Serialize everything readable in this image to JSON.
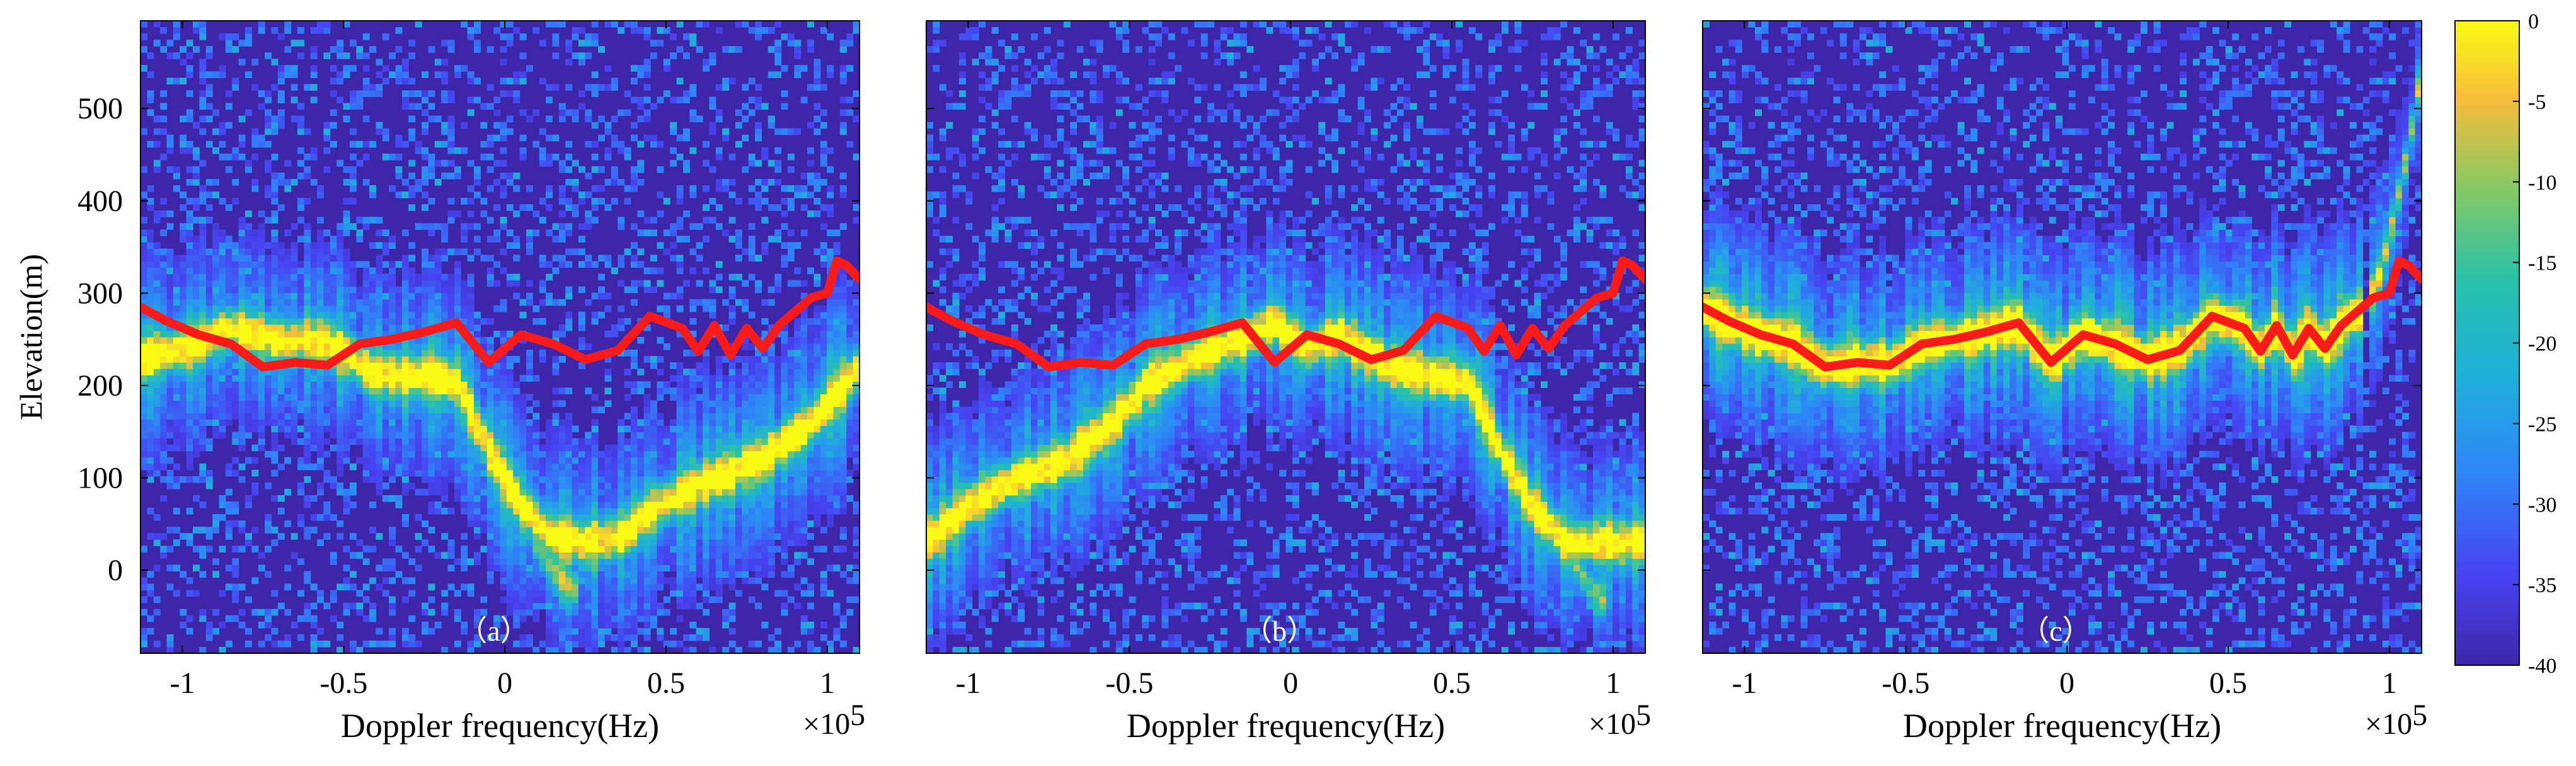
{
  "colors": {
    "axes_edge": "#000000",
    "ridge_line": "#ff1a1a",
    "panel_label": "#ffffff",
    "colormap": [
      "#3e26a8",
      "#4743f1",
      "#2e87f7",
      "#1fb0d9",
      "#29c1a9",
      "#86c963",
      "#f7bd3a",
      "#f9fb15"
    ]
  },
  "ylabel": "Elevation(m)",
  "xlabel": "Doppler frequency(Hz)",
  "x_multiplier": "×10",
  "x_multiplier_exp": "5",
  "colorbar_ticks": [
    "0",
    "-5",
    "-10",
    "-15",
    "-20",
    "-25",
    "-30",
    "-35",
    "-40"
  ],
  "chart_data": [
    {
      "type": "heatmap",
      "panel_label": "（a）",
      "xlabel": "Doppler frequency(Hz)",
      "ylabel": "Elevation(m)",
      "x_scale_label": "×10^5",
      "xlim": [
        -1.13,
        1.1
      ],
      "ylim": [
        -90,
        595
      ],
      "xticks": [
        -1,
        -0.5,
        0,
        0.5,
        1
      ],
      "xtick_labels": [
        "-1",
        "-0.5",
        "0",
        "0.5",
        "1"
      ],
      "yticks": [
        0,
        100,
        200,
        300,
        400,
        500
      ],
      "ytick_labels": [
        "0",
        "100",
        "200",
        "300",
        "400",
        "500"
      ],
      "clim": [
        -40,
        0
      ],
      "ridge_line": {
        "x": [
          -1.13,
          -1.05,
          -0.95,
          -0.85,
          -0.75,
          -0.65,
          -0.55,
          -0.45,
          -0.35,
          -0.25,
          -0.15,
          -0.05,
          0.05,
          0.15,
          0.25,
          0.35,
          0.45,
          0.55,
          0.6,
          0.65,
          0.7,
          0.75,
          0.8,
          0.85,
          0.9,
          0.95,
          1.0,
          1.03,
          1.06,
          1.1
        ],
        "y": [
          285,
          270,
          255,
          245,
          220,
          225,
          222,
          245,
          250,
          258,
          268,
          225,
          255,
          245,
          228,
          238,
          275,
          262,
          237,
          265,
          233,
          262,
          240,
          265,
          280,
          295,
          300,
          335,
          330,
          315
        ]
      },
      "signal_tracks": [
        {
          "x": [
            -1.13,
            -1.0,
            -0.85,
            -0.7,
            -0.55,
            -0.4,
            -0.25,
            -0.15,
            -0.05,
            0.05,
            0.15,
            0.25,
            0.35,
            0.5,
            0.65,
            0.8,
            0.95,
            1.1
          ],
          "y": [
            230,
            240,
            262,
            248,
            248,
            212,
            210,
            205,
            130,
            70,
            35,
            30,
            35,
            75,
            100,
            120,
            160,
            220
          ],
          "intensity": 0.9
        },
        {
          "x": [
            0.05,
            0.1,
            0.15,
            0.2
          ],
          "y": [
            70,
            30,
            0,
            -20
          ],
          "intensity": 0.55
        }
      ]
    },
    {
      "type": "heatmap",
      "panel_label": "（b）",
      "xlabel": "Doppler frequency(Hz)",
      "x_scale_label": "×10^5",
      "xlim": [
        -1.13,
        1.1
      ],
      "ylim": [
        -90,
        595
      ],
      "xticks": [
        -1,
        -0.5,
        0,
        0.5,
        1
      ],
      "xtick_labels": [
        "-1",
        "-0.5",
        "0",
        "0.5",
        "1"
      ],
      "clim": [
        -40,
        0
      ],
      "ridge_line": {
        "x": [
          -1.13,
          -1.05,
          -0.95,
          -0.85,
          -0.75,
          -0.65,
          -0.55,
          -0.45,
          -0.35,
          -0.25,
          -0.15,
          -0.05,
          0.05,
          0.15,
          0.25,
          0.35,
          0.45,
          0.55,
          0.6,
          0.65,
          0.7,
          0.75,
          0.8,
          0.85,
          0.9,
          0.95,
          1.0,
          1.03,
          1.06,
          1.1
        ],
        "y": [
          285,
          270,
          255,
          245,
          220,
          225,
          222,
          245,
          250,
          258,
          268,
          225,
          255,
          245,
          228,
          238,
          275,
          262,
          237,
          265,
          233,
          262,
          240,
          265,
          280,
          295,
          300,
          335,
          330,
          315
        ]
      },
      "signal_tracks": [
        {
          "x": [
            -1.13,
            -1.0,
            -0.85,
            -0.7,
            -0.55,
            -0.45,
            -0.3,
            -0.15,
            -0.05,
            0.05,
            0.15,
            0.3,
            0.45,
            0.55,
            0.65,
            0.75,
            0.85,
            0.95,
            1.1
          ],
          "y": [
            30,
            70,
            100,
            120,
            160,
            200,
            230,
            250,
            268,
            240,
            255,
            220,
            210,
            205,
            130,
            70,
            30,
            30,
            30
          ],
          "intensity": 0.9
        },
        {
          "x": [
            0.85,
            0.9,
            0.95
          ],
          "y": [
            30,
            0,
            -30
          ],
          "intensity": 0.55
        }
      ]
    },
    {
      "type": "heatmap",
      "panel_label": "（c）",
      "xlabel": "Doppler frequency(Hz)",
      "x_scale_label": "×10^5",
      "xlim": [
        -1.13,
        1.1
      ],
      "ylim": [
        -90,
        595
      ],
      "xticks": [
        -1,
        -0.5,
        0,
        0.5,
        1
      ],
      "xtick_labels": [
        "-1",
        "-0.5",
        "0",
        "0.5",
        "1"
      ],
      "clim": [
        -40,
        0
      ],
      "ridge_line": {
        "x": [
          -1.13,
          -1.05,
          -0.95,
          -0.85,
          -0.75,
          -0.65,
          -0.55,
          -0.45,
          -0.35,
          -0.25,
          -0.15,
          -0.05,
          0.05,
          0.15,
          0.25,
          0.35,
          0.45,
          0.55,
          0.6,
          0.65,
          0.7,
          0.75,
          0.8,
          0.85,
          0.9,
          0.95,
          1.0,
          1.03,
          1.06,
          1.1
        ],
        "y": [
          285,
          270,
          255,
          245,
          220,
          225,
          222,
          245,
          250,
          258,
          268,
          225,
          255,
          245,
          228,
          238,
          275,
          262,
          237,
          265,
          233,
          262,
          240,
          265,
          280,
          295,
          300,
          335,
          330,
          315
        ]
      },
      "signal_tracks": [
        {
          "x": [
            -1.13,
            -1.05,
            -0.95,
            -0.85,
            -0.75,
            -0.65,
            -0.55,
            -0.45,
            -0.35,
            -0.25,
            -0.15,
            -0.05,
            0.05,
            0.15,
            0.25,
            0.35,
            0.45,
            0.55,
            0.6,
            0.65,
            0.7,
            0.75,
            0.8,
            0.85,
            0.9
          ],
          "y": [
            285,
            270,
            255,
            245,
            220,
            225,
            222,
            245,
            250,
            258,
            268,
            225,
            255,
            245,
            228,
            238,
            275,
            262,
            237,
            265,
            233,
            262,
            240,
            265,
            280
          ],
          "intensity": 1.0
        },
        {
          "x": [
            0.95,
            1.0,
            1.05,
            1.1
          ],
          "y": [
            300,
            360,
            440,
            540
          ],
          "intensity": 0.6
        }
      ]
    }
  ],
  "colorbar": {
    "clim": [
      -40,
      0
    ],
    "ticks": [
      0,
      -5,
      -10,
      -15,
      -20,
      -25,
      -30,
      -35,
      -40
    ]
  }
}
